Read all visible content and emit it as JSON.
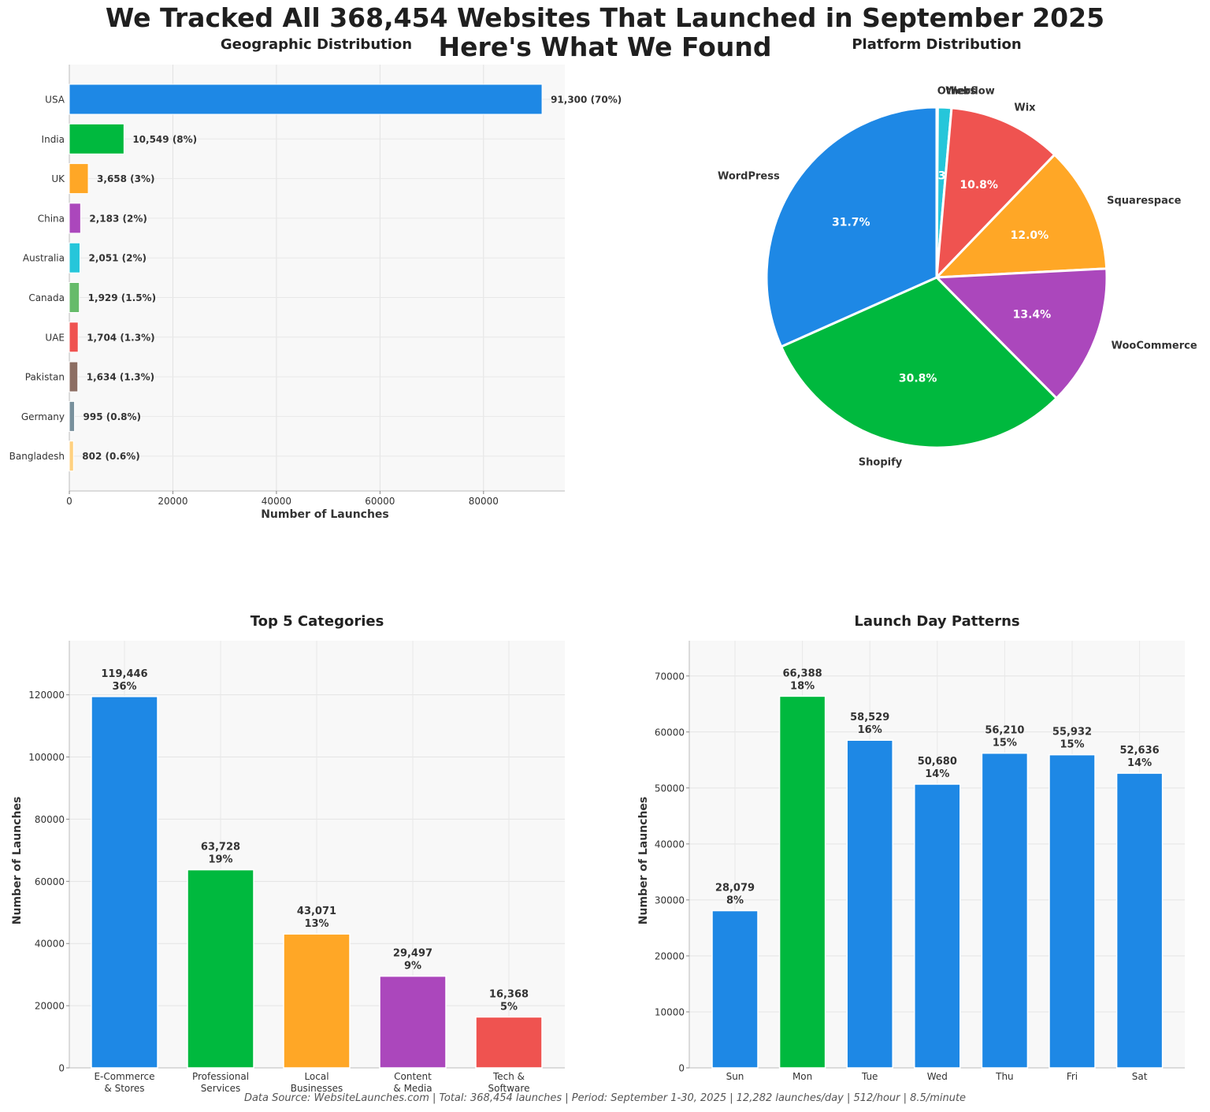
{
  "title": {
    "line1": "We Tracked All 368,454 Websites That Launched in September 2025",
    "line2": "Here's What We Found"
  },
  "footer": "Data Source: WebsiteLaunches.com  |  Total: 368,454 launches  |  Period: September 1-30, 2025  |  12,282 launches/day  |  512/hour  |  8.5/minute",
  "chart_data": [
    {
      "id": "geo",
      "type": "bar",
      "orientation": "horizontal",
      "title": "Geographic Distribution",
      "xlabel": "Number of Launches",
      "ylabel": "",
      "xlim": [
        0,
        95700
      ],
      "xticks": [
        0,
        20000,
        40000,
        60000,
        80000
      ],
      "grid": true,
      "categories": [
        "USA",
        "India",
        "UK",
        "China",
        "Australia",
        "Canada",
        "UAE",
        "Pakistan",
        "Germany",
        "Bangladesh"
      ],
      "values": [
        91300,
        10549,
        3658,
        2183,
        2051,
        1929,
        1704,
        1634,
        995,
        802
      ],
      "data_labels": [
        "91,300 (70%)",
        "10,549 (8%)",
        "3,658 (3%)",
        "2,183 (2%)",
        "2,051 (2%)",
        "1,929 (1.5%)",
        "1,704 (1.3%)",
        "1,634 (1.3%)",
        "995 (0.8%)",
        "802 (0.6%)"
      ],
      "colors": [
        "#1e88e5",
        "#00b93e",
        "#ffa726",
        "#ab47bc",
        "#26c6da",
        "#66bb6a",
        "#ef5350",
        "#8d6e63",
        "#78909c",
        "#ffd180"
      ]
    },
    {
      "id": "platform",
      "type": "pie",
      "title": "Platform Distribution",
      "start_angle_deg": 90,
      "direction": "clockwise",
      "slices": [
        {
          "label": "Others",
          "value": 0.1,
          "pct_label": "0.1%",
          "color": "#e0e0e0"
        },
        {
          "label": "Webflow",
          "value": 1.3,
          "pct_label": "1.3%",
          "color": "#26c6da"
        },
        {
          "label": "Wix",
          "value": 10.8,
          "pct_label": "10.8%",
          "color": "#ef5350"
        },
        {
          "label": "Squarespace",
          "value": 12.0,
          "pct_label": "12.0%",
          "color": "#ffa726"
        },
        {
          "label": "WooCommerce",
          "value": 13.4,
          "pct_label": "13.4%",
          "color": "#ab47bc"
        },
        {
          "label": "Shopify",
          "value": 30.8,
          "pct_label": "30.8%",
          "color": "#00b93e"
        },
        {
          "label": "WordPress",
          "value": 31.7,
          "pct_label": "31.7%",
          "color": "#1e88e5"
        }
      ]
    },
    {
      "id": "categories",
      "type": "bar",
      "title": "Top 5 Categories",
      "xlabel": "",
      "ylabel": "Number of Launches",
      "ylim": [
        0,
        137400
      ],
      "yticks": [
        0,
        20000,
        40000,
        60000,
        80000,
        100000,
        120000
      ],
      "grid": true,
      "categories": [
        [
          "E-Commerce",
          "& Stores"
        ],
        [
          "Professional",
          "Services"
        ],
        [
          "Local",
          "Businesses"
        ],
        [
          "Content",
          "& Media"
        ],
        [
          "Tech &",
          "Software"
        ]
      ],
      "values": [
        119446,
        63728,
        43071,
        29497,
        16368
      ],
      "data_labels": [
        [
          "119,446",
          "36%"
        ],
        [
          "63,728",
          "19%"
        ],
        [
          "43,071",
          "13%"
        ],
        [
          "29,497",
          "9%"
        ],
        [
          "16,368",
          "5%"
        ]
      ],
      "colors": [
        "#1e88e5",
        "#00b93e",
        "#ffa726",
        "#ab47bc",
        "#ef5350"
      ]
    },
    {
      "id": "days",
      "type": "bar",
      "title": "Launch Day Patterns",
      "xlabel": "",
      "ylabel": "Number of Launches",
      "ylim": [
        0,
        76300
      ],
      "yticks": [
        0,
        10000,
        20000,
        30000,
        40000,
        50000,
        60000,
        70000
      ],
      "grid": true,
      "categories": [
        "Sun",
        "Mon",
        "Tue",
        "Wed",
        "Thu",
        "Fri",
        "Sat"
      ],
      "values": [
        28079,
        66388,
        58529,
        50680,
        56210,
        55932,
        52636
      ],
      "data_labels": [
        [
          "28,079",
          "8%"
        ],
        [
          "66,388",
          "18%"
        ],
        [
          "58,529",
          "16%"
        ],
        [
          "50,680",
          "14%"
        ],
        [
          "56,210",
          "15%"
        ],
        [
          "55,932",
          "15%"
        ],
        [
          "52,636",
          "14%"
        ]
      ],
      "colors": [
        "#1e88e5",
        "#00b93e",
        "#1e88e5",
        "#1e88e5",
        "#1e88e5",
        "#1e88e5",
        "#1e88e5"
      ]
    }
  ]
}
